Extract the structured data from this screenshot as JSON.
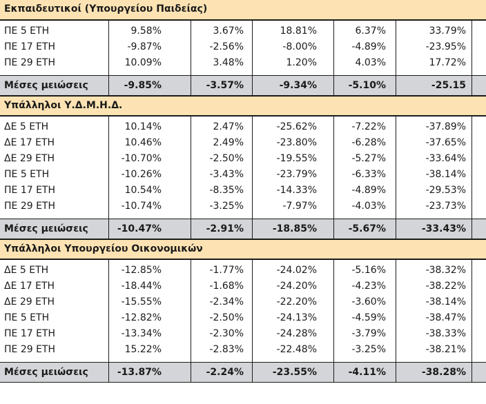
{
  "sections": [
    {
      "title": "Εκπαιδευτικοί (Υπουργείου Παιδείας)",
      "rows": [
        {
          "label": "ΠΕ 5 ΕΤΗ",
          "values": [
            "9.58%",
            "3.67%",
            "18.81%",
            "6.37%",
            "33.79%"
          ]
        },
        {
          "label": "ΠΕ 17 ΕΤΗ",
          "values": [
            "-9.87%",
            "-2.56%",
            "-8.00%",
            "-4.89%",
            "-23.95%"
          ]
        },
        {
          "label": "ΠΕ 29 ΕΤΗ",
          "values": [
            "10.09%",
            "3.48%",
            "1.20%",
            "4.03%",
            "17.72%"
          ]
        }
      ],
      "average": {
        "label": "Μέσες μειώσεις",
        "values": [
          "-9.85%",
          "-3.57%",
          "-9.34%",
          "-5.10%",
          "-25.15"
        ]
      }
    },
    {
      "title": "Υπάλληλοι Υ.Δ.Μ.Η.Δ.",
      "rows": [
        {
          "label": "ΔΕ 5 ΕΤΗ",
          "values": [
            "10.14%",
            "2.47%",
            "-25.62%",
            "-7.22%",
            "-37.89%"
          ]
        },
        {
          "label": "ΔΕ 17 ΕΤΗ",
          "values": [
            "10.46%",
            "2.49%",
            "-23.80%",
            "-6.28%",
            "-37.65%"
          ]
        },
        {
          "label": "ΔΕ 29 ΕΤΗ",
          "values": [
            "-10.70%",
            "-2.50%",
            "-19.55%",
            "-5.27%",
            "-33.64%"
          ]
        },
        {
          "label": "ΠΕ 5 ΕΤΗ",
          "values": [
            "-10.26%",
            "-3.43%",
            "-23.79%",
            "-6.33%",
            "-38.14%"
          ]
        },
        {
          "label": "ΠΕ 17 ΕΤΗ",
          "values": [
            "10.54%",
            "-8.35%",
            "-14.33%",
            "-4.89%",
            "-29.53%"
          ]
        },
        {
          "label": "ΠΕ 29 ΕΤΗ",
          "values": [
            "-10.74%",
            "-3.25%",
            "-7.97%",
            "-4.03%",
            "-23.73%"
          ]
        }
      ],
      "average": {
        "label": "Μέσες μειώσεις",
        "values": [
          "-10.47%",
          "-2.91%",
          "-18.85%",
          "-5.67%",
          "-33.43%"
        ]
      }
    },
    {
      "title": "Υπάλληλοι Υπουργείου Οικονομικών",
      "rows": [
        {
          "label": "ΔΕ 5 ΕΤΗ",
          "values": [
            "-12.85%",
            "-1.77%",
            "-24.02%",
            "-5.16%",
            "-38.32%"
          ]
        },
        {
          "label": "ΔΕ 17 ΕΤΗ",
          "values": [
            "-18.44%",
            "-1.68%",
            "-24.20%",
            "-4.23%",
            "-38.22%"
          ]
        },
        {
          "label": "ΔΕ 29 ΕΤΗ",
          "values": [
            "-15.55%",
            "-2.34%",
            "-22.20%",
            "-3.60%",
            "-38.14%"
          ]
        },
        {
          "label": "ΠΕ 5 ΕΤΗ",
          "values": [
            "-12.82%",
            "-2.50%",
            "-24.13%",
            "-4.59%",
            "-38.47%"
          ]
        },
        {
          "label": "ΠΕ 17 ΕΤΗ",
          "values": [
            "-13.34%",
            "-2.30%",
            "-24.28%",
            "-3.79%",
            "-38.33%"
          ]
        },
        {
          "label": "ΠΕ 29 ΕΤΗ",
          "values": [
            "15.22%",
            "-2.83%",
            "-22.48%",
            "-3.25%",
            "-38.21%"
          ]
        }
      ],
      "average": {
        "label": "Μέσες μειώσεις",
        "values": [
          "-13.87%",
          "-2.24%",
          "-23.55%",
          "-4.11%",
          "-38.28%"
        ]
      }
    }
  ],
  "colors": {
    "header_bg": "#fde3b3",
    "average_bg": "#d4d5d8",
    "border": "#1a1a1a"
  }
}
